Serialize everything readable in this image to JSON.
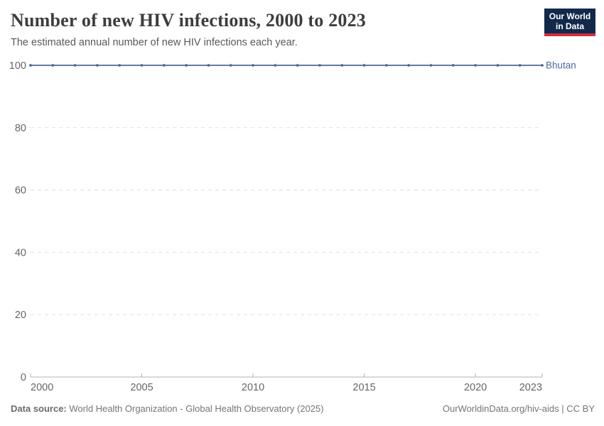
{
  "header": {
    "title": "Number of new HIV infections, 2000 to 2023",
    "subtitle": "The estimated annual number of new HIV infections each year."
  },
  "logo": {
    "line1": "Our World",
    "line2": "in Data",
    "bg_color": "#12294b",
    "accent_color": "#cf2e41"
  },
  "chart_data": {
    "type": "line",
    "title": "Number of new HIV infections, 2000 to 2023",
    "x": [
      2000,
      2001,
      2002,
      2003,
      2004,
      2005,
      2006,
      2007,
      2008,
      2009,
      2010,
      2011,
      2012,
      2013,
      2014,
      2015,
      2016,
      2017,
      2018,
      2019,
      2020,
      2021,
      2022,
      2023
    ],
    "series": [
      {
        "name": "Bhutan",
        "values": [
          100,
          100,
          100,
          100,
          100,
          100,
          100,
          100,
          100,
          100,
          100,
          100,
          100,
          100,
          100,
          100,
          100,
          100,
          100,
          100,
          100,
          100,
          100,
          100
        ]
      }
    ],
    "entity_label": "Bhutan",
    "ylim": [
      0,
      100
    ],
    "yticks": [
      0,
      20,
      40,
      60,
      80,
      100
    ],
    "xticks": [
      2000,
      2005,
      2010,
      2015,
      2020,
      2023
    ],
    "grid": true,
    "legend_position": "right-of-line",
    "colors": {
      "series": "#4C6A9C",
      "grid": "#e0e0e0",
      "axis": "#b3b3b3",
      "tick_label": "#666666"
    }
  },
  "footer": {
    "source_label": "Data source:",
    "source_value": "World Health Organization - Global Health Observatory (2025)",
    "link": "OurWorldinData.org/hiv-aids",
    "separator": " | ",
    "license": "CC BY"
  }
}
